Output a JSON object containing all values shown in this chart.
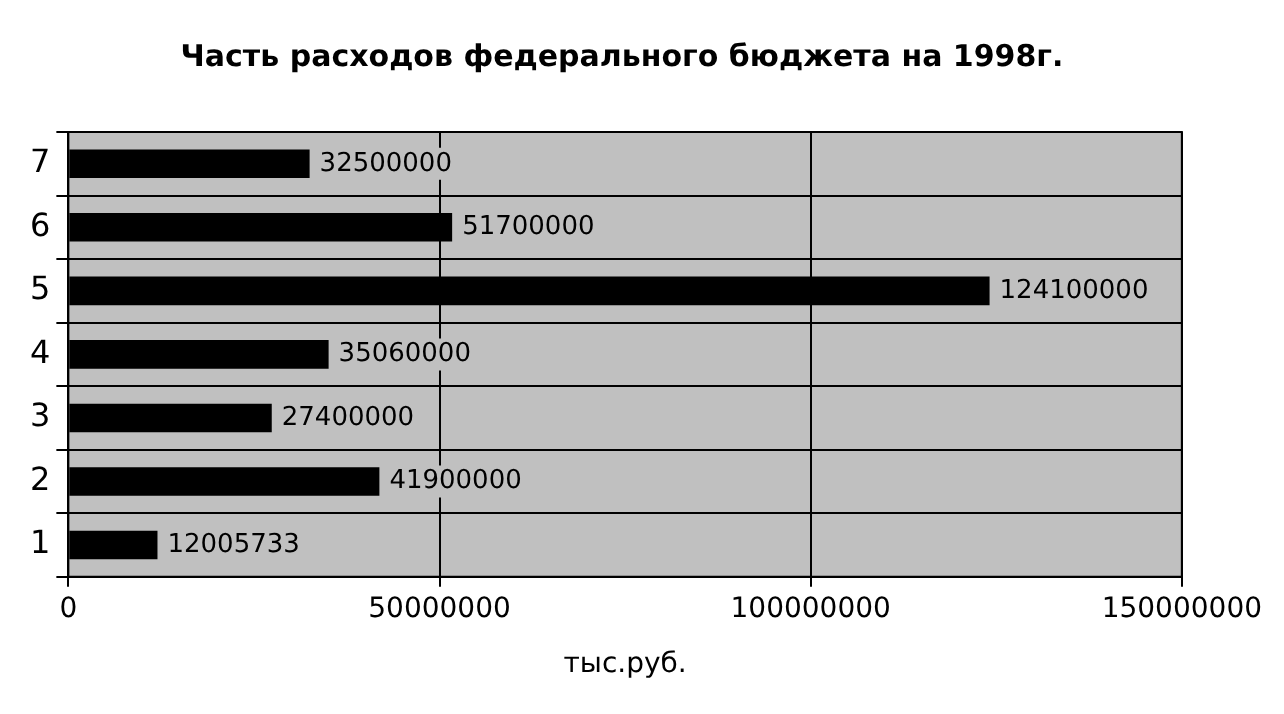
{
  "chart_data": {
    "type": "bar",
    "orientation": "horizontal",
    "title": "Часть расходов федерального бюджета на 1998г.",
    "xlabel": "тыс.руб.",
    "categories": [
      "7",
      "6",
      "5",
      "4",
      "3",
      "2",
      "1"
    ],
    "values": [
      32500000,
      51700000,
      124100000,
      35060000,
      27400000,
      41900000,
      12005733
    ],
    "color": "#000000",
    "xlim": [
      0,
      150000000
    ],
    "xticks": [
      0,
      50000000,
      100000000,
      150000000
    ],
    "grid": true,
    "data_labels": true
  }
}
